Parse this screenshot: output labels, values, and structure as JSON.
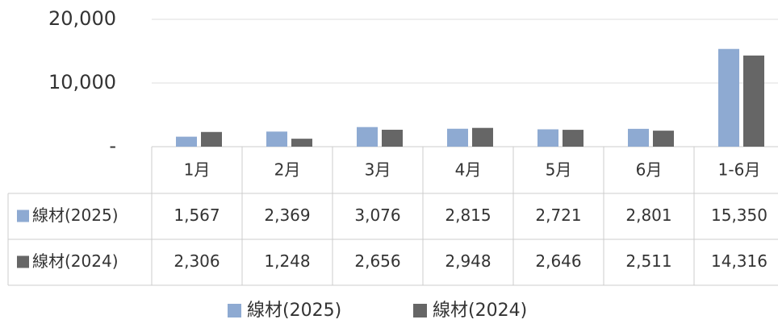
{
  "chart_data": {
    "type": "bar",
    "categories": [
      "1月",
      "2月",
      "3月",
      "4月",
      "5月",
      "6月",
      "1-6月"
    ],
    "series": [
      {
        "name": "線材(2025)",
        "color": "#8eaad2",
        "values": [
          1567,
          2369,
          3076,
          2815,
          2721,
          2801,
          15350
        ],
        "value_labels": [
          "1,567",
          "2,369",
          "3,076",
          "2,815",
          "2,721",
          "2,801",
          "15,350"
        ]
      },
      {
        "name": "線材(2024)",
        "color": "#666666",
        "values": [
          2306,
          1248,
          2656,
          2948,
          2646,
          2511,
          14316
        ],
        "value_labels": [
          "2,306",
          "1,248",
          "2,656",
          "2,948",
          "2,646",
          "2,511",
          "14,316"
        ]
      }
    ],
    "ylim": [
      0,
      20000
    ],
    "yticks": [
      {
        "value": 0,
        "label": "-"
      },
      {
        "value": 10000,
        "label": "10,000"
      },
      {
        "value": 20000,
        "label": "20,000"
      }
    ],
    "grid": true
  }
}
